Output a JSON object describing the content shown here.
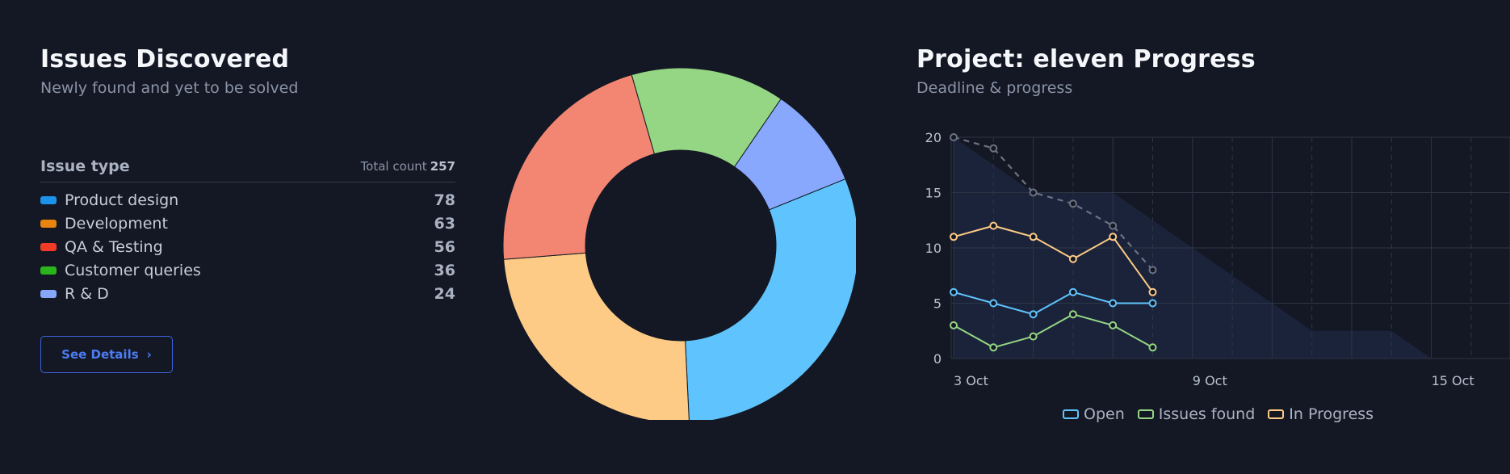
{
  "left": {
    "title": "Issues Discovered",
    "subtitle": "Newly found and yet to be solved",
    "table_header": {
      "label": "Issue type",
      "total_label": "Total count",
      "total_value": "257"
    },
    "issues": [
      {
        "label": "Product design",
        "value": "78",
        "color": "#1c93e8"
      },
      {
        "label": "Development",
        "value": "63",
        "color": "#e8850e"
      },
      {
        "label": "QA & Testing",
        "value": "56",
        "color": "#ef3b27"
      },
      {
        "label": "Customer queries",
        "value": "36",
        "color": "#2bb51d"
      },
      {
        "label": "R & D",
        "value": "24",
        "color": "#86a6fb"
      }
    ],
    "button_label": "See Details",
    "button_icon": "chevron-right-icon"
  },
  "right": {
    "title": "Project: eleven Progress",
    "subtitle": "Deadline & progress"
  },
  "chart_data": [
    {
      "type": "pie",
      "variant": "donut",
      "categories": [
        "Product design",
        "Development",
        "QA & Testing",
        "Customer queries",
        "R & D"
      ],
      "values": [
        78,
        63,
        56,
        36,
        24
      ],
      "colors": [
        "#5fc4fd",
        "#fdcb85",
        "#f38672",
        "#94d683",
        "#87a8fd"
      ]
    },
    {
      "type": "line",
      "x_tick_labels": [
        "3 Oct",
        "9 Oct",
        "15 Oct"
      ],
      "x_dates": [
        "3 Oct",
        "4 Oct",
        "5 Oct",
        "6 Oct",
        "7 Oct",
        "8 Oct"
      ],
      "ylim": [
        0,
        20
      ],
      "y_ticks": [
        0,
        5,
        10,
        15,
        20
      ],
      "grid": true,
      "legend_position": "bottom",
      "series": [
        {
          "name": "Open",
          "color": "#5fc4fd",
          "values": [
            6,
            5,
            4,
            6,
            5,
            5
          ]
        },
        {
          "name": "Issues found",
          "color": "#94d683",
          "values": [
            3,
            1,
            2,
            4,
            3,
            1
          ]
        },
        {
          "name": "In Progress",
          "color": "#fdcb85",
          "values": [
            11,
            12,
            11,
            9,
            11,
            6
          ]
        }
      ],
      "dashed_series": {
        "color": "#6b7282",
        "values": [
          20,
          19,
          15,
          14,
          12,
          8
        ]
      },
      "area_series": {
        "color": "#1c2640",
        "points": [
          [
            "3 Oct",
            20
          ],
          [
            "5 Oct",
            15
          ],
          [
            "7 Oct",
            15
          ],
          [
            "9 Oct",
            10
          ],
          [
            "12 Oct",
            2.5
          ],
          [
            "14 Oct",
            2.5
          ],
          [
            "15 Oct",
            0
          ]
        ]
      }
    }
  ]
}
